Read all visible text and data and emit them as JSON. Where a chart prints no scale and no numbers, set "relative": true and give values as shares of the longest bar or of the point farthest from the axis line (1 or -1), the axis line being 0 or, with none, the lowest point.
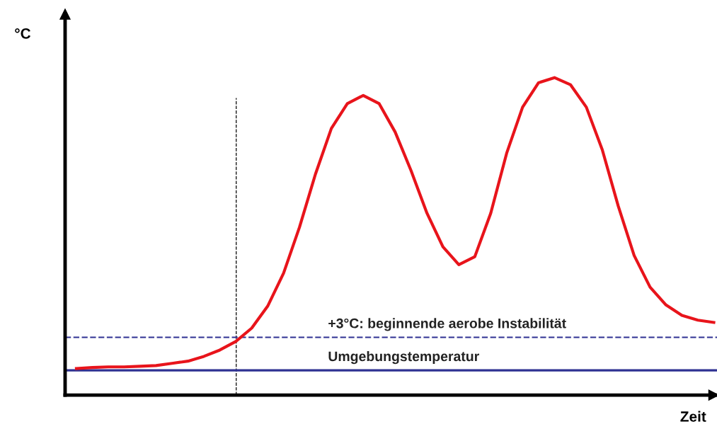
{
  "chart_data": {
    "type": "line",
    "relative": true,
    "xlabel": "Zeit",
    "ylabel": "°C",
    "categories": [
      null,
      null,
      null,
      null,
      null,
      null,
      null,
      null,
      null,
      null,
      null,
      null,
      null,
      null,
      null,
      null,
      null,
      null,
      null,
      null,
      null,
      null,
      null,
      null,
      null,
      null,
      null,
      null,
      null,
      null,
      null,
      null,
      null,
      null,
      null,
      null,
      null,
      null,
      null,
      null,
      null
    ],
    "series": [
      {
        "color": "#e8141b",
        "values": [
          0.084,
          0.087,
          0.089,
          0.089,
          0.091,
          0.093,
          0.1,
          0.107,
          0.122,
          0.142,
          0.169,
          0.211,
          0.28,
          0.384,
          0.529,
          0.696,
          0.84,
          0.918,
          0.944,
          0.918,
          0.829,
          0.707,
          0.573,
          0.467,
          0.411,
          0.436,
          0.573,
          0.762,
          0.907,
          0.984,
          1,
          0.978,
          0.907,
          0.773,
          0.596,
          0.44,
          0.34,
          0.284,
          0.251,
          0.236,
          0.229
        ]
      }
    ],
    "ref_lines": [
      {
        "axis": "y",
        "value": 0.078,
        "label": "Umgebungstemperatur",
        "color": "#2e3192",
        "line_style": "solid"
      },
      {
        "axis": "y",
        "value": 0.182,
        "label": "+3°C: beginnende aerobe Instabilität",
        "color": "#2e3192",
        "line_style": "dashed"
      }
    ],
    "marker": "none",
    "line_style": "solid"
  }
}
